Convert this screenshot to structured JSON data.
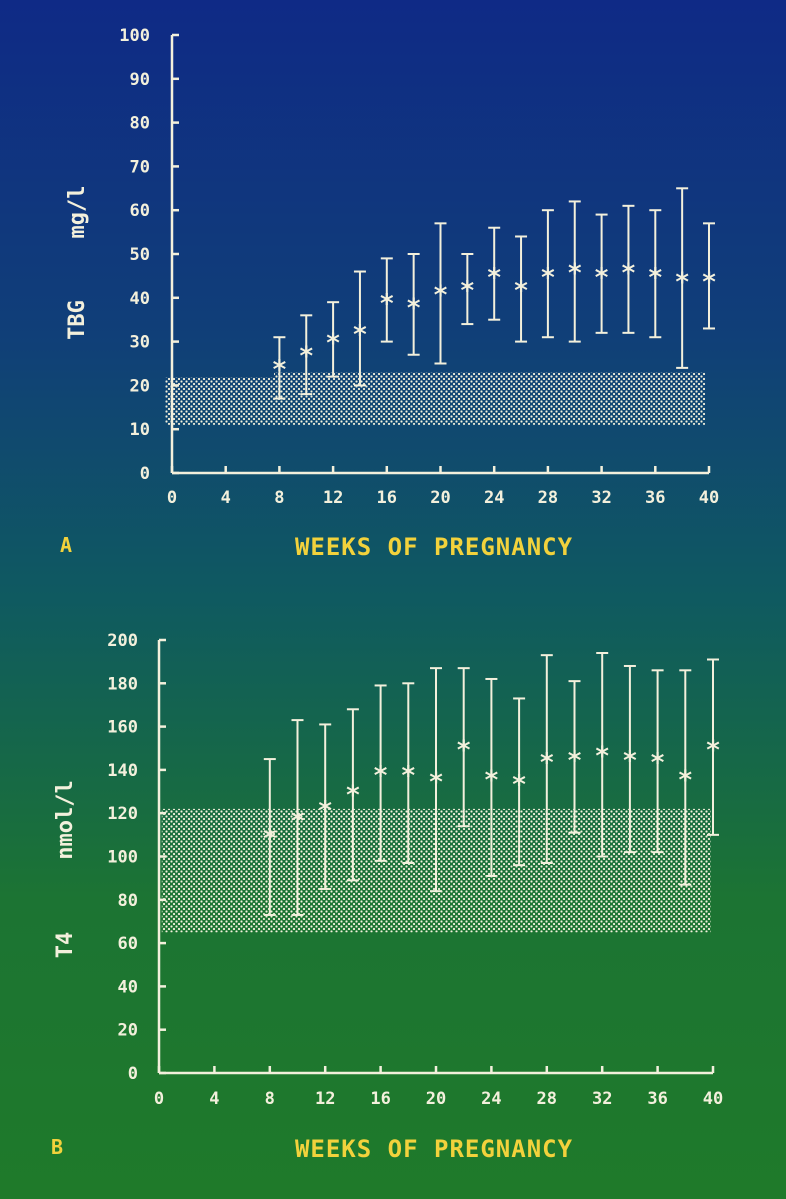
{
  "colors": {
    "text": "#f3f0dc",
    "title": "#f2d23c",
    "band": "#f3f0dc"
  },
  "chart_data": [
    {
      "type": "scatter",
      "panel_label": "A",
      "ylabel_left": "TBG",
      "ylabel_unit": "mg/l",
      "xlabel": "WEEKS OF PREGNANCY",
      "xlim": [
        0,
        40
      ],
      "ylim": [
        0,
        100
      ],
      "xticks": [
        0,
        4,
        8,
        12,
        16,
        20,
        24,
        28,
        32,
        36,
        40
      ],
      "yticks": [
        0,
        10,
        20,
        30,
        40,
        50,
        60,
        70,
        80,
        90,
        100
      ],
      "reference_range": [
        11,
        23
      ],
      "x": [
        8,
        10,
        12,
        14,
        16,
        18,
        20,
        22,
        24,
        26,
        28,
        30,
        32,
        34,
        36,
        38,
        40
      ],
      "y": [
        24,
        27,
        30,
        32,
        39,
        38,
        41,
        42,
        45,
        42,
        45,
        46,
        45,
        46,
        45,
        44,
        44
      ],
      "err_low": [
        17,
        18,
        22,
        20,
        30,
        27,
        25,
        34,
        35,
        30,
        31,
        30,
        32,
        32,
        31,
        24,
        33
      ],
      "err_high": [
        31,
        36,
        39,
        46,
        49,
        50,
        57,
        50,
        56,
        54,
        60,
        62,
        59,
        61,
        60,
        65,
        57
      ]
    },
    {
      "type": "scatter",
      "panel_label": "B",
      "ylabel_left": "T4",
      "ylabel_unit": "nmol/l",
      "xlabel": "WEEKS OF PREGNANCY",
      "xlim": [
        0,
        40
      ],
      "ylim": [
        0,
        200
      ],
      "xticks": [
        0,
        4,
        8,
        12,
        16,
        20,
        24,
        28,
        32,
        36,
        40
      ],
      "yticks": [
        0,
        20,
        40,
        60,
        80,
        100,
        120,
        140,
        160,
        180,
        200
      ],
      "reference_range": [
        65,
        122
      ],
      "x": [
        8,
        10,
        12,
        14,
        16,
        18,
        20,
        22,
        24,
        26,
        28,
        30,
        32,
        34,
        36,
        38,
        40
      ],
      "y": [
        109,
        117,
        122,
        129,
        138,
        138,
        135,
        150,
        136,
        134,
        144,
        145,
        147,
        145,
        144,
        136,
        150
      ],
      "err_low": [
        73,
        73,
        85,
        89,
        98,
        97,
        84,
        114,
        91,
        96,
        97,
        111,
        100,
        102,
        102,
        87,
        110
      ],
      "err_high": [
        145,
        163,
        161,
        168,
        179,
        180,
        187,
        187,
        182,
        173,
        193,
        181,
        194,
        188,
        186,
        186,
        191
      ]
    }
  ]
}
